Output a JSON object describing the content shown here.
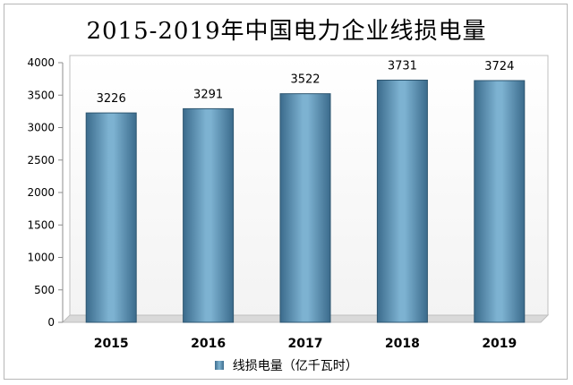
{
  "chart_data": {
    "type": "bar",
    "title": "2015-2019年中国电力企业线损电量",
    "categories": [
      "2015",
      "2016",
      "2017",
      "2018",
      "2019"
    ],
    "series": [
      {
        "name": "线损电量（亿千瓦时）",
        "values": [
          3226,
          3291,
          3522,
          3731,
          3724
        ]
      }
    ],
    "data_labels": [
      "3226",
      "3291",
      "3522",
      "3731",
      "3724"
    ],
    "ylim": [
      0,
      4000
    ],
    "yticks": [
      "0",
      "500",
      "1000",
      "1500",
      "2000",
      "2500",
      "3000",
      "3500",
      "4000"
    ],
    "grid": false,
    "legend_position": "bottom",
    "bar_color": "#5b93b8"
  }
}
